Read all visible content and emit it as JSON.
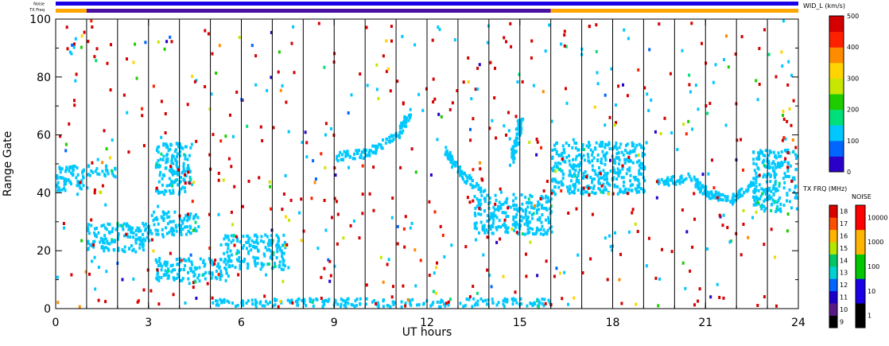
{
  "chart_data": [
    {
      "type": "heatmap",
      "title": "",
      "xlabel": "UT hours",
      "ylabel": "Range Gate",
      "xlim": [
        0,
        24
      ],
      "ylim": [
        0,
        100
      ],
      "x_ticks": [
        "0",
        "3",
        "6",
        "9",
        "12",
        "15",
        "18",
        "21",
        "24"
      ],
      "y_ticks": [
        "0",
        "20",
        "40",
        "60",
        "80",
        "100"
      ],
      "quantity": "WID_L (km/s)",
      "grid": "vertical lines every 1 UT hour",
      "scan_breaks_ut": [
        1,
        2,
        3,
        4,
        5,
        6,
        7,
        8,
        9,
        10,
        11,
        12,
        13,
        14,
        15,
        16,
        17,
        18,
        19,
        20,
        21,
        22,
        23
      ],
      "echo_regions": [
        {
          "ut": [
            0,
            1
          ],
          "gate": [
            40,
            50
          ],
          "width": 100
        },
        {
          "ut": [
            1,
            3
          ],
          "gate": [
            20,
            30
          ],
          "width": 100
        },
        {
          "ut": [
            1,
            2
          ],
          "gate": [
            46,
            50
          ],
          "width": 100
        },
        {
          "ut": [
            3.2,
            4.4
          ],
          "gate": [
            40,
            58
          ],
          "width": 100
        },
        {
          "ut": [
            3,
            4.6
          ],
          "gate": [
            26,
            34
          ],
          "width": 100
        },
        {
          "ut": [
            3.2,
            5.6
          ],
          "gate": [
            10,
            18
          ],
          "width": 100
        },
        {
          "ut": [
            5.4,
            7.4
          ],
          "gate": [
            14,
            26
          ],
          "width": 100
        },
        {
          "ut": [
            5,
            16
          ],
          "gate": [
            0,
            4
          ],
          "width": 100
        },
        {
          "ut": [
            13.5,
            16
          ],
          "gate": [
            26,
            40
          ],
          "width": 100
        },
        {
          "ut": [
            16,
            19
          ],
          "gate": [
            40,
            58
          ],
          "width": 100
        },
        {
          "ut": [
            22.5,
            24
          ],
          "gate": [
            34,
            56
          ],
          "width": 100
        }
      ],
      "echo_tracks": [
        {
          "points": [
            [
              9,
              53
            ],
            [
              10,
              54
            ],
            [
              11,
              60
            ],
            [
              11.4,
              68
            ]
          ],
          "width": 100
        },
        {
          "points": [
            [
              12.6,
              55
            ],
            [
              13,
              48
            ],
            [
              13.8,
              40
            ]
          ],
          "width": 100
        },
        {
          "points": [
            [
              19.5,
              44
            ],
            [
              20.5,
              46
            ],
            [
              21,
              40
            ],
            [
              21.8,
              38
            ],
            [
              22.5,
              44
            ]
          ],
          "width": 100
        },
        {
          "points": [
            [
              14.7,
              52
            ],
            [
              14.9,
              60
            ],
            [
              15,
              66
            ]
          ],
          "width": 100
        }
      ]
    },
    {
      "type": "heatmap",
      "title": "",
      "series": [
        {
          "name": "Noise",
          "values": [
            {
              "ut": [
                0,
                24
              ],
              "level": "10"
            }
          ]
        },
        {
          "name": "TX Freq",
          "values": [
            {
              "ut": [
                0,
                1
              ],
              "mhz": 15
            },
            {
              "ut": [
                1,
                16
              ],
              "mhz": 11
            },
            {
              "ut": [
                16,
                24
              ],
              "mhz": 15
            }
          ]
        }
      ]
    }
  ],
  "colorbars": {
    "width": {
      "title": "WID_L (km/s)",
      "ticks": [
        "0",
        "100",
        "200",
        "300",
        "400",
        "500"
      ],
      "range": [
        0,
        500
      ],
      "stops": [
        "#2a00c8",
        "#0066ff",
        "#00c8ff",
        "#00e07a",
        "#1fcc00",
        "#c8e600",
        "#ffd400",
        "#ff8c00",
        "#ff2000",
        "#d40000"
      ]
    },
    "freq": {
      "title": "TX FRQ (MHz)",
      "ticks": [
        "9",
        "10",
        "11",
        "12",
        "13",
        "14",
        "15",
        "16",
        "17",
        "18"
      ],
      "colors": [
        "#000000",
        "#5a1a86",
        "#1a00c8",
        "#0066ff",
        "#00d2d2",
        "#00c864",
        "#b4e600",
        "#ffb400",
        "#ff5000",
        "#dc0000"
      ]
    },
    "noise": {
      "title": "NOISE",
      "ticks": [
        "1",
        "10",
        "100",
        "1000",
        "10000"
      ],
      "colors": [
        "#000000",
        "#1a00e6",
        "#00c800",
        "#ffb400",
        "#ff0000"
      ]
    }
  },
  "colors": {
    "noise_bar": "#1a00e6",
    "freq_main": "#ffa500",
    "freq_mid": "#4a0fa0"
  }
}
